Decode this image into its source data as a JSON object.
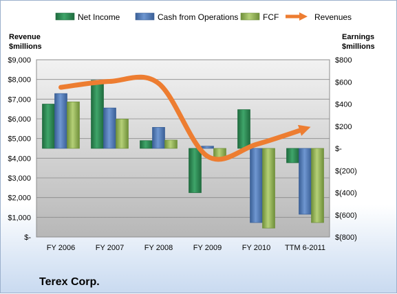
{
  "chart_data": {
    "type": "bar",
    "title": "",
    "company": "Terex Corp.",
    "categories": [
      "FY 2006",
      "FY 2007",
      "FY 2008",
      "FY 2009",
      "FY 2010",
      "TTM 6-2011"
    ],
    "left_axis": {
      "label_line1": "Revenue",
      "label_line2": "$millions",
      "range": [
        0,
        9000
      ],
      "ticks": [
        0,
        1000,
        2000,
        3000,
        4000,
        5000,
        6000,
        7000,
        8000,
        9000
      ],
      "tick_labels": [
        "$-",
        "$1,000",
        "$2,000",
        "$3,000",
        "$4,000",
        "$5,000",
        "$6,000",
        "$7,000",
        "$8,000",
        "$9,000"
      ]
    },
    "right_axis": {
      "label_line1": "Earnings",
      "label_line2": "$millions",
      "range": [
        -800,
        800
      ],
      "ticks": [
        -800,
        -600,
        -400,
        -200,
        0,
        200,
        400,
        600,
        800
      ],
      "tick_labels": [
        "$(800)",
        "$(600)",
        "$(400)",
        "$(200)",
        "$-",
        "$200",
        "$400",
        "$600",
        "$800"
      ]
    },
    "series": [
      {
        "name": "Net Income",
        "type": "bar",
        "axis": "right",
        "color": "#2e8b57",
        "values": [
          400,
          615,
          70,
          -400,
          350,
          -130
        ]
      },
      {
        "name": "Cash from Operations",
        "type": "bar",
        "axis": "right",
        "color": "#4f81bd",
        "values": [
          495,
          365,
          190,
          20,
          -670,
          -595
        ]
      },
      {
        "name": "FCF",
        "type": "bar",
        "axis": "right",
        "color": "#9bbb59",
        "values": [
          420,
          265,
          75,
          -90,
          -720,
          -670
        ]
      },
      {
        "name": "Revenues",
        "type": "line",
        "axis": "left",
        "color": "#ed7d31",
        "values": [
          7600,
          7900,
          7800,
          4100,
          4700,
          5500
        ]
      }
    ],
    "grid": true,
    "legend_position": "top"
  }
}
